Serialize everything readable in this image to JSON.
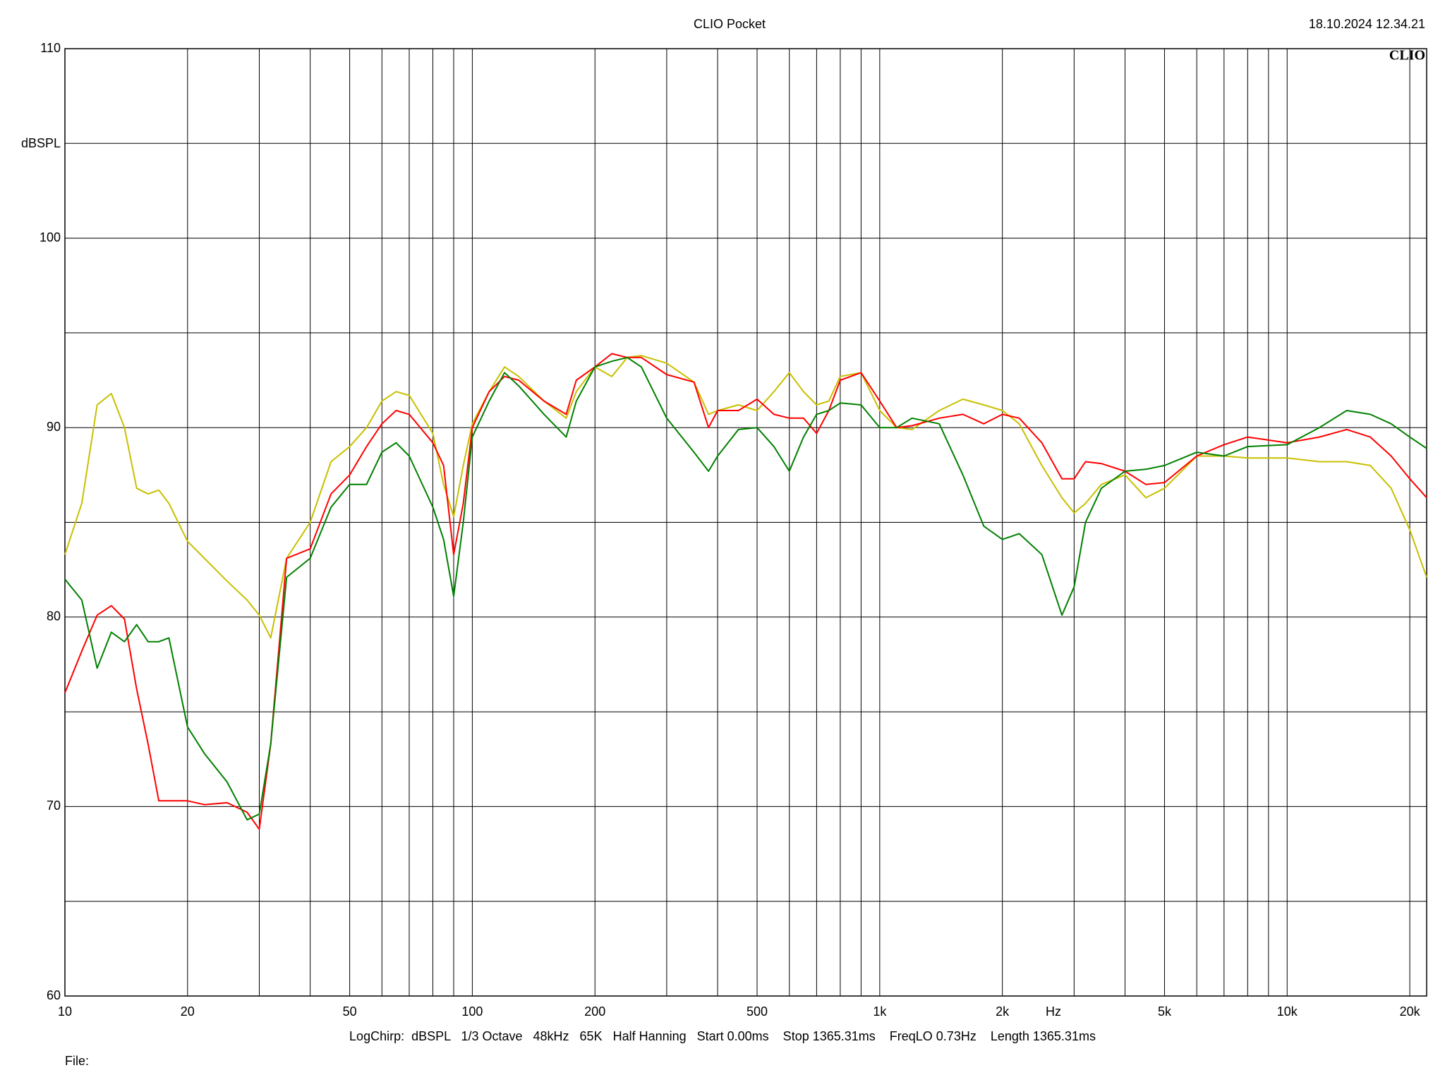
{
  "chart_data": {
    "type": "line",
    "title": "CLIO Pocket",
    "timestamp": "18.10.2024 12.34.21",
    "logo": "CLIO",
    "ylabel": "dBSPL",
    "xlabel": "Hz",
    "info": "LogChirp:  dBSPL   1/3 Octave   48kHz   65K   Half Hanning   Start 0.00ms    Stop 1365.31ms    FreqLO 0.73Hz    Length 1365.31ms",
    "file": "File:",
    "log_x": true,
    "grid": true,
    "xlim": [
      10,
      22000
    ],
    "ylim": [
      60,
      110
    ],
    "xticks": [
      10,
      20,
      50,
      100,
      200,
      500,
      {
        "value": 1000,
        "label": "1k"
      },
      {
        "value": 2000,
        "label": "2k"
      },
      {
        "value": 5000,
        "label": "5k"
      },
      {
        "value": 10000,
        "label": "10k"
      },
      {
        "value": 20000,
        "label": "20k"
      }
    ],
    "x_minor_ticks": [
      30,
      40,
      60,
      70,
      80,
      90,
      300,
      400,
      600,
      700,
      800,
      900,
      3000,
      4000,
      6000,
      7000,
      8000,
      9000
    ],
    "yticks": [
      60,
      70,
      80,
      90,
      100,
      110
    ],
    "y_minor_ticks": [
      65,
      75,
      85,
      95,
      105
    ],
    "x": [
      10,
      11,
      12,
      13,
      14,
      15,
      16,
      17,
      18,
      20,
      22,
      25,
      28,
      30,
      32,
      35,
      40,
      45,
      50,
      55,
      60,
      65,
      70,
      80,
      85,
      90,
      95,
      100,
      110,
      120,
      130,
      150,
      170,
      180,
      200,
      220,
      240,
      260,
      300,
      350,
      380,
      400,
      450,
      500,
      550,
      600,
      650,
      700,
      750,
      800,
      900,
      1000,
      1100,
      1200,
      1400,
      1600,
      1800,
      2000,
      2200,
      2500,
      2800,
      3000,
      3200,
      3500,
      4000,
      4500,
      5000,
      6000,
      7000,
      8000,
      10000,
      12000,
      14000,
      16000,
      18000,
      20000,
      22000
    ],
    "series": [
      {
        "color": "#c8c000",
        "values": [
          83.3,
          86,
          91.2,
          91.8,
          90,
          86.8,
          86.5,
          86.7,
          86,
          84,
          83.1,
          81.9,
          80.9,
          80.1,
          78.9,
          83.1,
          85,
          88.2,
          89,
          90,
          91.4,
          91.9,
          91.7,
          89.7,
          87,
          85.3,
          88,
          90.2,
          91.9,
          93.2,
          92.7,
          91.4,
          90.5,
          91.9,
          93.2,
          92.7,
          93.7,
          93.8,
          93.4,
          92.4,
          90.7,
          90.9,
          91.2,
          90.9,
          91.9,
          92.9,
          91.9,
          91.2,
          91.4,
          92.7,
          92.9,
          90.9,
          90,
          89.9,
          90.9,
          91.5,
          91.2,
          90.9,
          90.2,
          88,
          86.3,
          85.5,
          86,
          87,
          87.5,
          86.3,
          86.8,
          88.5,
          88.5,
          88.4,
          88.4,
          88.2,
          88.2,
          88,
          86.8,
          84.6,
          82.1
        ]
      },
      {
        "color": "#ff0000",
        "values": [
          76,
          78.2,
          80.1,
          80.6,
          79.9,
          76.2,
          73.3,
          70.3,
          70.3,
          70.3,
          70.1,
          70.2,
          69.7,
          68.8,
          73.3,
          83.1,
          83.6,
          86.5,
          87.5,
          89,
          90.2,
          90.9,
          90.7,
          89.2,
          88,
          83.3,
          86,
          90,
          91.9,
          92.7,
          92.5,
          91.4,
          90.7,
          92.5,
          93.2,
          93.9,
          93.7,
          93.7,
          92.8,
          92.4,
          90,
          90.9,
          90.9,
          91.5,
          90.7,
          90.5,
          90.5,
          89.7,
          90.9,
          92.5,
          92.9,
          91.4,
          90,
          90.1,
          90.5,
          90.7,
          90.2,
          90.7,
          90.5,
          89.2,
          87.3,
          87.3,
          88.2,
          88.1,
          87.7,
          87,
          87.1,
          88.5,
          89.1,
          89.5,
          89.2,
          89.5,
          89.9,
          89.5,
          88.5,
          87.3,
          86.3
        ]
      },
      {
        "color": "#008000",
        "values": [
          82,
          80.9,
          77.3,
          79.2,
          78.7,
          79.6,
          78.7,
          78.7,
          78.9,
          74.2,
          72.8,
          71.3,
          69.3,
          69.6,
          73.3,
          82.1,
          83.1,
          85.8,
          87,
          87,
          88.7,
          89.2,
          88.5,
          85.8,
          84.1,
          81.1,
          85,
          89.5,
          91.4,
          92.9,
          92.2,
          90.7,
          89.5,
          91.4,
          93.2,
          93.5,
          93.7,
          93.2,
          90.5,
          88.7,
          87.7,
          88.5,
          89.9,
          90,
          89,
          87.7,
          89.5,
          90.7,
          90.9,
          91.3,
          91.2,
          90,
          90,
          90.5,
          90.2,
          87.5,
          84.8,
          84.1,
          84.4,
          83.3,
          80.1,
          81.6,
          85,
          86.8,
          87.7,
          87.8,
          88,
          88.7,
          88.5,
          89,
          89.1,
          90,
          90.9,
          90.7,
          90.2,
          89.5,
          88.9
        ]
      }
    ]
  }
}
